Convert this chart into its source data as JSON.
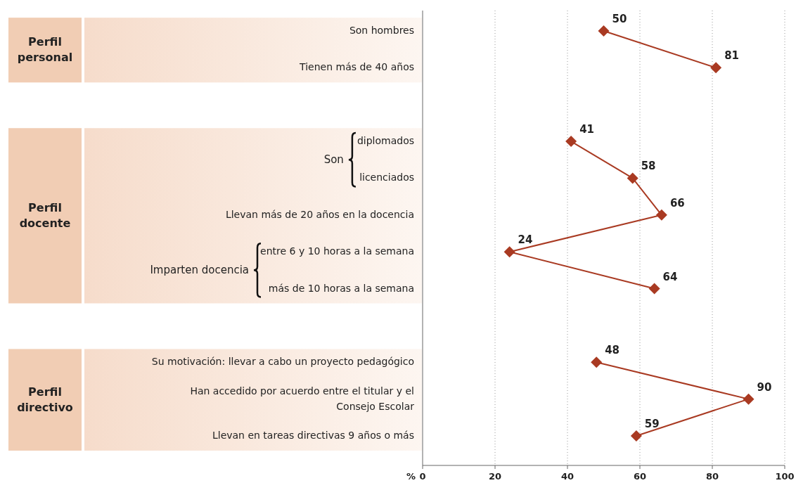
{
  "chart_data": {
    "type": "line",
    "orientation": "horizontal",
    "categories": [
      "Son hombres",
      "Tienen más de 40 años",
      null,
      "diplomados",
      "licenciados",
      "Llevan más de 20 años en la docencia",
      "entre 6 y 10 horas a la semana",
      "más de 10 horas a la semana",
      null,
      "Su motivación: llevar a cabo un proyecto pedagógico",
      "Han accedido por acuerdo entre el titular y el Consejo Escolar",
      "Llevan en tareas directivas 9 años o más"
    ],
    "series": [
      {
        "color": "#a93a22",
        "values": [
          50,
          81,
          null,
          41,
          58,
          66,
          24,
          64,
          null,
          48,
          90,
          59
        ]
      }
    ],
    "xlabel": "%",
    "xlim": [
      0,
      100
    ],
    "xticks": [
      0,
      20,
      40,
      60,
      80,
      100
    ],
    "grid": "x",
    "marker": "diamond",
    "line_style": "solid",
    "data_labels": true,
    "annotations": [
      "Perfil personal",
      "Perfil docente",
      "Perfil directivo",
      "Son",
      "Imparten docencia"
    ]
  }
}
